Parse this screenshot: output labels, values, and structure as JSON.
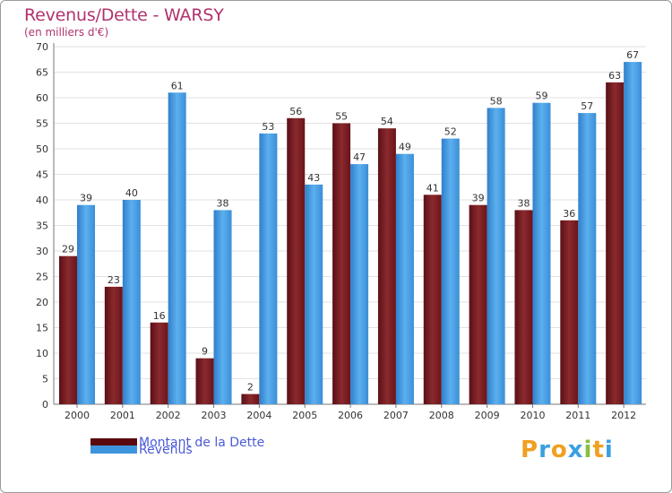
{
  "header": {
    "title": "Revenus/Dette - WARSY",
    "subtitle": "(en milliers d'€)"
  },
  "chart_data": {
    "type": "bar",
    "categories": [
      "2000",
      "2001",
      "2002",
      "2003",
      "2004",
      "2005",
      "2006",
      "2007",
      "2008",
      "2009",
      "2010",
      "2011",
      "2012"
    ],
    "series": [
      {
        "name": "Montant de la Dette",
        "color": "#7a1d23",
        "values": [
          29,
          23,
          16,
          9,
          2,
          56,
          55,
          54,
          41,
          39,
          38,
          36,
          63
        ]
      },
      {
        "name": "Revenus",
        "color": "#3f95dd",
        "values": [
          39,
          40,
          61,
          38,
          53,
          43,
          47,
          49,
          52,
          58,
          59,
          57,
          67
        ]
      }
    ],
    "ylim": [
      0,
      70
    ],
    "yticks": [
      0,
      5,
      10,
      15,
      20,
      25,
      30,
      35,
      40,
      45,
      50,
      55,
      60,
      65,
      70
    ],
    "grid": true,
    "legend": "bottom-left",
    "data_labels": true
  },
  "legend": {
    "items": [
      {
        "label": "Montant de la Dette",
        "color": "#5a0a0f"
      },
      {
        "label": "Revenus",
        "color": "#3f95dd"
      }
    ]
  },
  "logo": {
    "text": "Proxiti",
    "letters": [
      {
        "ch": "P",
        "color": "#f0a020"
      },
      {
        "ch": "r",
        "color": "#3aa0e0"
      },
      {
        "ch": "o",
        "color": "#f0a020"
      },
      {
        "ch": "x",
        "color": "#3aa0e0"
      },
      {
        "ch": "i",
        "color": "#88c040"
      },
      {
        "ch": "t",
        "color": "#f0a020"
      },
      {
        "ch": "i",
        "color": "#3aa0e0"
      }
    ]
  }
}
